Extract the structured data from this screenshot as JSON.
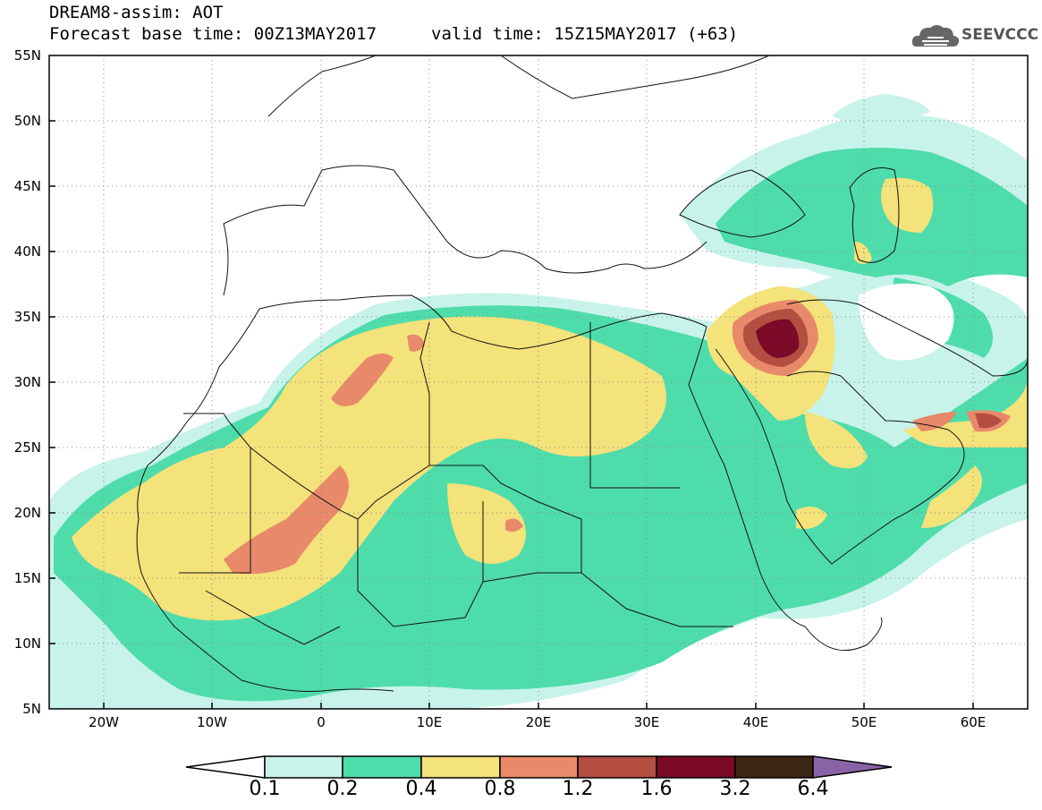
{
  "title": {
    "line1": "DREAM8-assim: AOT",
    "line2": "Forecast base time: 00Z13MAY2017",
    "valid": "valid time: 15Z15MAY2017 (+63)"
  },
  "logo": {
    "text": "SEEVCCC",
    "icon": "cloud-icon"
  },
  "map": {
    "lon_range": [
      -25,
      65
    ],
    "lat_range": [
      5,
      55
    ],
    "lat_labels": [
      "55N",
      "50N",
      "45N",
      "40N",
      "35N",
      "30N",
      "25N",
      "20N",
      "15N",
      "10N",
      "5N"
    ],
    "lon_labels": [
      "20W",
      "10W",
      "0",
      "10E",
      "20E",
      "30E",
      "40E",
      "50E",
      "60E"
    ]
  },
  "colorbar": {
    "labels": [
      "0.1",
      "0.2",
      "0.4",
      "0.8",
      "1.2",
      "1.6",
      "3.2",
      "6.4"
    ],
    "colors": [
      "#c7f3ea",
      "#4fdcab",
      "#f4e27a",
      "#e8896a",
      "#b34e40",
      "#7a0a28",
      "#3b2515",
      "#8a63a7"
    ]
  }
}
